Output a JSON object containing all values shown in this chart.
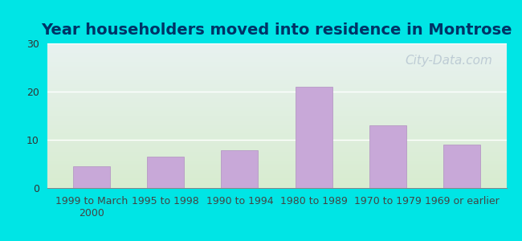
{
  "title": "Year householders moved into residence in Montrose",
  "categories": [
    "1999 to March\n2000",
    "1995 to 1998",
    "1990 to 1994",
    "1980 to 1989",
    "1970 to 1979",
    "1969 or earlier"
  ],
  "values": [
    4.5,
    6.5,
    7.8,
    21.0,
    13.0,
    9.0
  ],
  "bar_color": "#c8a8d8",
  "bar_edge_color": "#b090c0",
  "ylim": [
    0,
    30
  ],
  "yticks": [
    0,
    10,
    20,
    30
  ],
  "background_outer": "#00e5e5",
  "background_top": "#e8f2f0",
  "background_bottom": "#d8ecd0",
  "watermark": "City-Data.com",
  "title_fontsize": 14,
  "tick_fontsize": 9,
  "watermark_fontsize": 11,
  "title_color": "#003366"
}
